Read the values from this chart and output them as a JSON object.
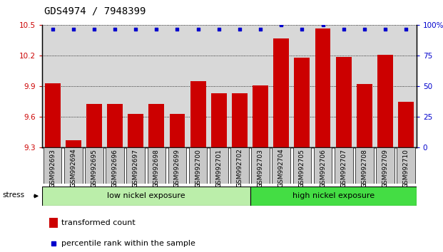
{
  "title": "GDS4974 / 7948399",
  "samples": [
    "GSM992693",
    "GSM992694",
    "GSM992695",
    "GSM992696",
    "GSM992697",
    "GSM992698",
    "GSM992699",
    "GSM992700",
    "GSM992701",
    "GSM992702",
    "GSM992703",
    "GSM992704",
    "GSM992705",
    "GSM992706",
    "GSM992707",
    "GSM992708",
    "GSM992709",
    "GSM992710"
  ],
  "transformed_counts": [
    9.93,
    9.37,
    9.73,
    9.73,
    9.63,
    9.73,
    9.63,
    9.95,
    9.83,
    9.83,
    9.91,
    10.37,
    10.18,
    10.47,
    10.19,
    9.92,
    10.21,
    9.75
  ],
  "percentile_ranks": [
    97,
    97,
    97,
    97,
    97,
    97,
    97,
    97,
    97,
    97,
    97,
    100,
    97,
    100,
    97,
    97,
    97,
    97
  ],
  "ylim_left": [
    9.3,
    10.5
  ],
  "ylim_right": [
    0,
    100
  ],
  "yticks_left": [
    9.3,
    9.6,
    9.9,
    10.2,
    10.5
  ],
  "ytick_labels_left": [
    "9.3",
    "9.6",
    "9.9",
    "10.2",
    "10.5"
  ],
  "yticks_right": [
    0,
    25,
    50,
    75,
    100
  ],
  "ytick_labels_right": [
    "0",
    "25",
    "50",
    "75",
    "100%"
  ],
  "bar_color": "#cc0000",
  "dot_color": "#0000cc",
  "background_plot": "#d8d8d8",
  "group1_label": "low nickel exposure",
  "group1_color": "#bbeeaa",
  "group2_label": "high nickel exposure",
  "group2_color": "#44dd44",
  "group1_count": 10,
  "group2_count": 8,
  "stress_label": "stress",
  "legend_bar_label": "transformed count",
  "legend_dot_label": "percentile rank within the sample",
  "title_fontsize": 10,
  "tick_fontsize": 7.5,
  "xlabel_fontsize": 6.5
}
